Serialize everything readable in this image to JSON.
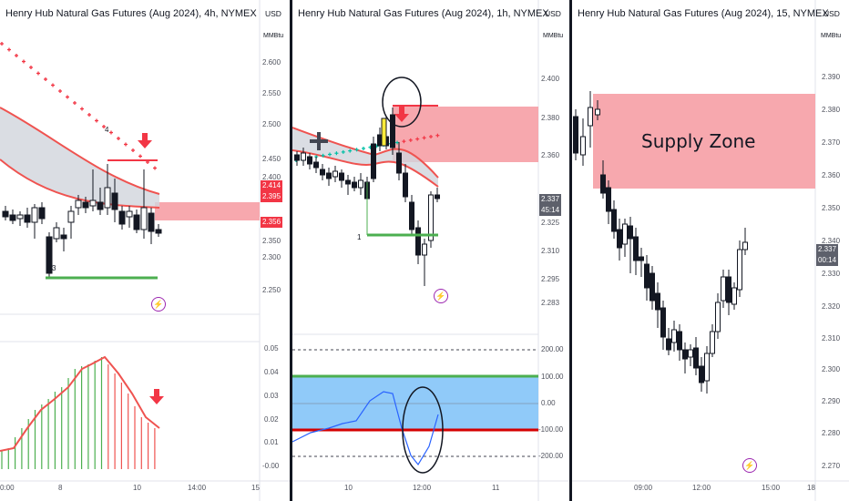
{
  "panels": {
    "left": {
      "title": "Henry Hub Natural Gas Futures (Aug 2024), 4h, NYMEX",
      "currency": "USD",
      "unit": "MMBtu",
      "price_ticks": [
        "2.600",
        "2.550",
        "2.500",
        "2.450",
        "2.400",
        "2.350",
        "2.300",
        "2.250"
      ],
      "price_tags": [
        {
          "label": "2.414",
          "color": "#f23645"
        },
        {
          "label": "2.395",
          "color": "#f23645"
        },
        {
          "label": "2.356",
          "color": "#f23645"
        }
      ],
      "wave_labels": [
        "4",
        "3"
      ],
      "osc_ticks": [
        "0.05",
        "0.04",
        "0.03",
        "0.02",
        "0.01",
        "-0.00"
      ],
      "time_ticks": [
        "0:00",
        "8",
        "10",
        "14:00",
        "15"
      ],
      "bolt_icon": "lightning-icon"
    },
    "middle": {
      "title": "Henry Hub Natural Gas Futures (Aug 2024), 1h, NYMEX",
      "currency": "USD",
      "unit": "MMBtu",
      "price_ticks": [
        "2.400",
        "2.380",
        "2.360",
        "2.325",
        "2.310",
        "2.295",
        "2.283"
      ],
      "price_tags": [
        {
          "label": "2.337",
          "color": "#787b86"
        },
        {
          "label": "45:14",
          "color": "#787b86"
        }
      ],
      "wave_labels": [
        "1"
      ],
      "osc_ticks": [
        "200.00",
        "100.00",
        "0.00",
        "-100.00",
        "-200.00"
      ],
      "time_ticks": [
        "10",
        "12:00",
        "11"
      ],
      "bolt_icon": "lightning-icon"
    },
    "right": {
      "title": "Henry Hub Natural Gas Futures (Aug 2024), 15, NYMEX",
      "currency": "USD",
      "unit": "MMBtu",
      "price_ticks": [
        "2.390",
        "2.380",
        "2.370",
        "2.360",
        "2.350",
        "2.340",
        "2.330",
        "2.320",
        "2.310",
        "2.300",
        "2.290",
        "2.280",
        "2.270"
      ],
      "price_tags": [
        {
          "label": "2.337",
          "color": "#787b86"
        },
        {
          "label": "00:14",
          "color": "#787b86"
        }
      ],
      "zone_label": "Supply Zone",
      "time_ticks": [
        "09:00",
        "12:00",
        "15:00",
        "18"
      ],
      "bolt_icon": "lightning-icon"
    }
  },
  "colors": {
    "bull": "#ffffff",
    "bear": "#131722",
    "supply_zone": "#f7a8ae",
    "sell_arrow": "#f23645",
    "support_line": "#4caf50",
    "cci_band": "#90caf9",
    "cci_line": "#2962ff"
  }
}
